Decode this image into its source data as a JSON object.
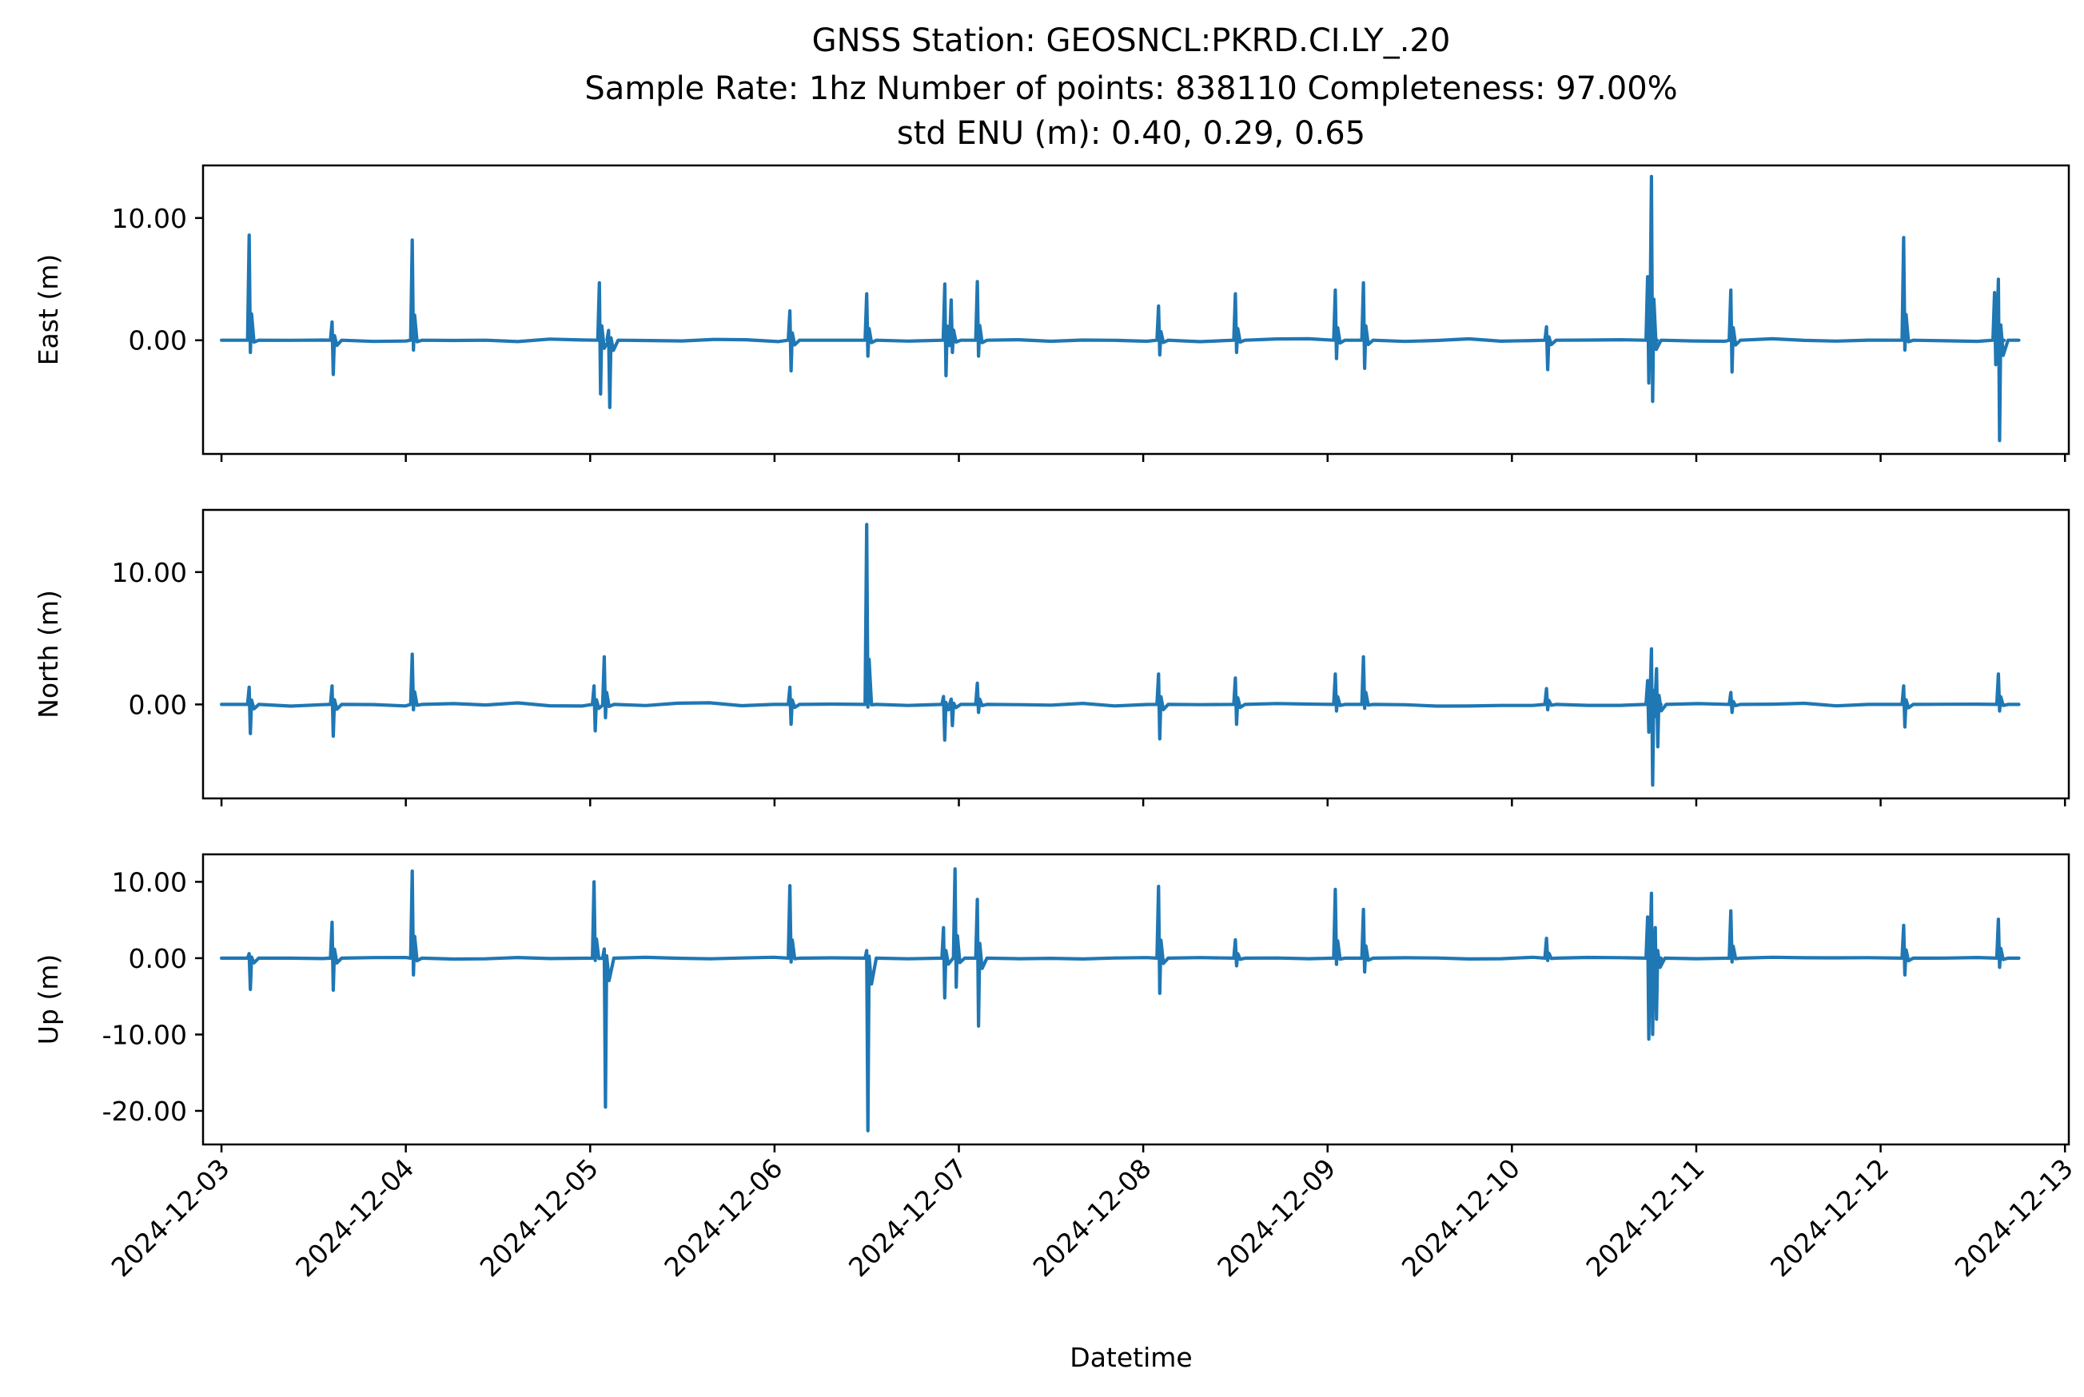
{
  "chart_data": {
    "type": "line",
    "title": [
      "GNSS Station: GEOSNCL:PKRD.CI.LY_.20",
      "Sample Rate: 1hz   Number of points: 838110    Completeness:  97.00%",
      "std ENU (m):  0.40, 0.29, 0.65"
    ],
    "xlabel": "Datetime",
    "x_ticks": [
      "2024-12-03",
      "2024-12-04",
      "2024-12-05",
      "2024-12-06",
      "2024-12-07",
      "2024-12-08",
      "2024-12-09",
      "2024-12-10",
      "2024-12-11",
      "2024-12-12",
      "2024-12-13"
    ],
    "x_range": [
      "2024-12-02 21:36",
      "2024-12-13 00:30"
    ],
    "data_range": [
      "2024-12-03 00:00",
      "2024-12-12 18:00"
    ],
    "line_color": "#1f77b4",
    "panels": [
      {
        "ylabel": "East (m)",
        "ylim": [
          -9.3,
          14.3
        ],
        "yticks": [
          10,
          0
        ],
        "ytick_labels": [
          "10.00",
          "0.00"
        ],
        "spikes": [
          {
            "t": "2024-12-03 03:36",
            "hi": 8.6,
            "lo": -1.0
          },
          {
            "t": "2024-12-03 14:24",
            "hi": 1.5,
            "lo": -2.8
          },
          {
            "t": "2024-12-04 00:50",
            "hi": 8.2,
            "lo": -0.8
          },
          {
            "t": "2024-12-05 01:12",
            "hi": 4.7,
            "lo": -4.4
          },
          {
            "t": "2024-12-05 02:24",
            "hi": 0.8,
            "lo": -5.5
          },
          {
            "t": "2024-12-06 02:00",
            "hi": 2.4,
            "lo": -2.5
          },
          {
            "t": "2024-12-06 12:00",
            "hi": 3.8,
            "lo": -1.3
          },
          {
            "t": "2024-12-06 22:10",
            "hi": 4.6,
            "lo": -2.9
          },
          {
            "t": "2024-12-06 23:00",
            "hi": 3.3,
            "lo": -1.0
          },
          {
            "t": "2024-12-07 02:24",
            "hi": 4.8,
            "lo": -1.3
          },
          {
            "t": "2024-12-08 02:00",
            "hi": 2.8,
            "lo": -1.2
          },
          {
            "t": "2024-12-08 12:00",
            "hi": 3.8,
            "lo": -1.0
          },
          {
            "t": "2024-12-09 01:00",
            "hi": 4.1,
            "lo": -1.5
          },
          {
            "t": "2024-12-09 04:40",
            "hi": 4.7,
            "lo": -2.3
          },
          {
            "t": "2024-12-10 04:30",
            "hi": 1.1,
            "lo": -2.4
          },
          {
            "t": "2024-12-10 17:40",
            "hi": 5.2,
            "lo": -3.5
          },
          {
            "t": "2024-12-10 18:10",
            "hi": 13.4,
            "lo": -5.0
          },
          {
            "t": "2024-12-11 04:30",
            "hi": 4.1,
            "lo": -2.6
          },
          {
            "t": "2024-12-12 03:00",
            "hi": 8.4,
            "lo": -0.8
          },
          {
            "t": "2024-12-12 14:50",
            "hi": 3.9,
            "lo": -2.0
          },
          {
            "t": "2024-12-12 15:20",
            "hi": 5.0,
            "lo": -8.2
          }
        ]
      },
      {
        "ylabel": "North (m)",
        "ylim": [
          -7.1,
          14.7
        ],
        "yticks": [
          10,
          0
        ],
        "ytick_labels": [
          "10.00",
          "0.00"
        ],
        "spikes": [
          {
            "t": "2024-12-03 03:36",
            "hi": 1.3,
            "lo": -2.2
          },
          {
            "t": "2024-12-03 14:24",
            "hi": 1.4,
            "lo": -2.4
          },
          {
            "t": "2024-12-04 00:50",
            "hi": 3.8,
            "lo": -0.4
          },
          {
            "t": "2024-12-05 00:30",
            "hi": 1.4,
            "lo": -2.0
          },
          {
            "t": "2024-12-05 01:50",
            "hi": 3.6,
            "lo": -1.0
          },
          {
            "t": "2024-12-06 02:00",
            "hi": 1.3,
            "lo": -1.5
          },
          {
            "t": "2024-12-06 12:00",
            "hi": 13.6,
            "lo": -0.2
          },
          {
            "t": "2024-12-06 22:00",
            "hi": 0.6,
            "lo": -2.7
          },
          {
            "t": "2024-12-06 23:00",
            "hi": 0.4,
            "lo": -1.6
          },
          {
            "t": "2024-12-07 02:24",
            "hi": 1.6,
            "lo": -0.6
          },
          {
            "t": "2024-12-08 02:00",
            "hi": 2.3,
            "lo": -2.6
          },
          {
            "t": "2024-12-08 12:00",
            "hi": 2.0,
            "lo": -1.5
          },
          {
            "t": "2024-12-09 01:00",
            "hi": 2.3,
            "lo": -0.5
          },
          {
            "t": "2024-12-09 04:40",
            "hi": 3.6,
            "lo": -0.3
          },
          {
            "t": "2024-12-10 04:30",
            "hi": 1.2,
            "lo": -0.4
          },
          {
            "t": "2024-12-10 17:40",
            "hi": 1.8,
            "lo": -2.1
          },
          {
            "t": "2024-12-10 18:10",
            "hi": 4.2,
            "lo": -6.1
          },
          {
            "t": "2024-12-10 18:50",
            "hi": 2.7,
            "lo": -3.2
          },
          {
            "t": "2024-12-11 04:30",
            "hi": 0.9,
            "lo": -0.6
          },
          {
            "t": "2024-12-12 03:00",
            "hi": 1.4,
            "lo": -1.7
          },
          {
            "t": "2024-12-12 15:20",
            "hi": 2.3,
            "lo": -0.5
          }
        ]
      },
      {
        "ylabel": "Up (m)",
        "ylim": [
          -24.4,
          13.6
        ],
        "yticks": [
          10,
          0,
          -10,
          -20
        ],
        "ytick_labels": [
          "10.00",
          "0.00",
          "-10.00",
          "-20.00"
        ],
        "spikes": [
          {
            "t": "2024-12-03 03:36",
            "hi": 0.6,
            "lo": -4.1
          },
          {
            "t": "2024-12-03 14:24",
            "hi": 4.7,
            "lo": -4.2
          },
          {
            "t": "2024-12-04 00:50",
            "hi": 11.4,
            "lo": -2.2
          },
          {
            "t": "2024-12-05 00:30",
            "hi": 10.0,
            "lo": -0.3
          },
          {
            "t": "2024-12-05 01:50",
            "hi": 1.2,
            "lo": -19.5
          },
          {
            "t": "2024-12-06 02:00",
            "hi": 9.5,
            "lo": -0.5
          },
          {
            "t": "2024-12-06 12:00",
            "hi": 1.0,
            "lo": -22.6
          },
          {
            "t": "2024-12-06 22:00",
            "hi": 4.0,
            "lo": -5.2
          },
          {
            "t": "2024-12-06 23:30",
            "hi": 11.7,
            "lo": -3.8
          },
          {
            "t": "2024-12-07 02:24",
            "hi": 7.7,
            "lo": -8.9
          },
          {
            "t": "2024-12-08 02:00",
            "hi": 9.4,
            "lo": -4.6
          },
          {
            "t": "2024-12-08 12:00",
            "hi": 2.4,
            "lo": -1.0
          },
          {
            "t": "2024-12-09 01:00",
            "hi": 9.0,
            "lo": -0.8
          },
          {
            "t": "2024-12-09 04:40",
            "hi": 6.4,
            "lo": -1.8
          },
          {
            "t": "2024-12-10 04:30",
            "hi": 2.6,
            "lo": -0.3
          },
          {
            "t": "2024-12-10 17:40",
            "hi": 5.4,
            "lo": -10.6
          },
          {
            "t": "2024-12-10 18:10",
            "hi": 8.5,
            "lo": -10.0
          },
          {
            "t": "2024-12-10 18:40",
            "hi": 4.0,
            "lo": -8.0
          },
          {
            "t": "2024-12-11 04:30",
            "hi": 6.2,
            "lo": -0.5
          },
          {
            "t": "2024-12-12 03:00",
            "hi": 4.3,
            "lo": -2.2
          },
          {
            "t": "2024-12-12 15:20",
            "hi": 5.1,
            "lo": -1.2
          }
        ]
      }
    ]
  }
}
